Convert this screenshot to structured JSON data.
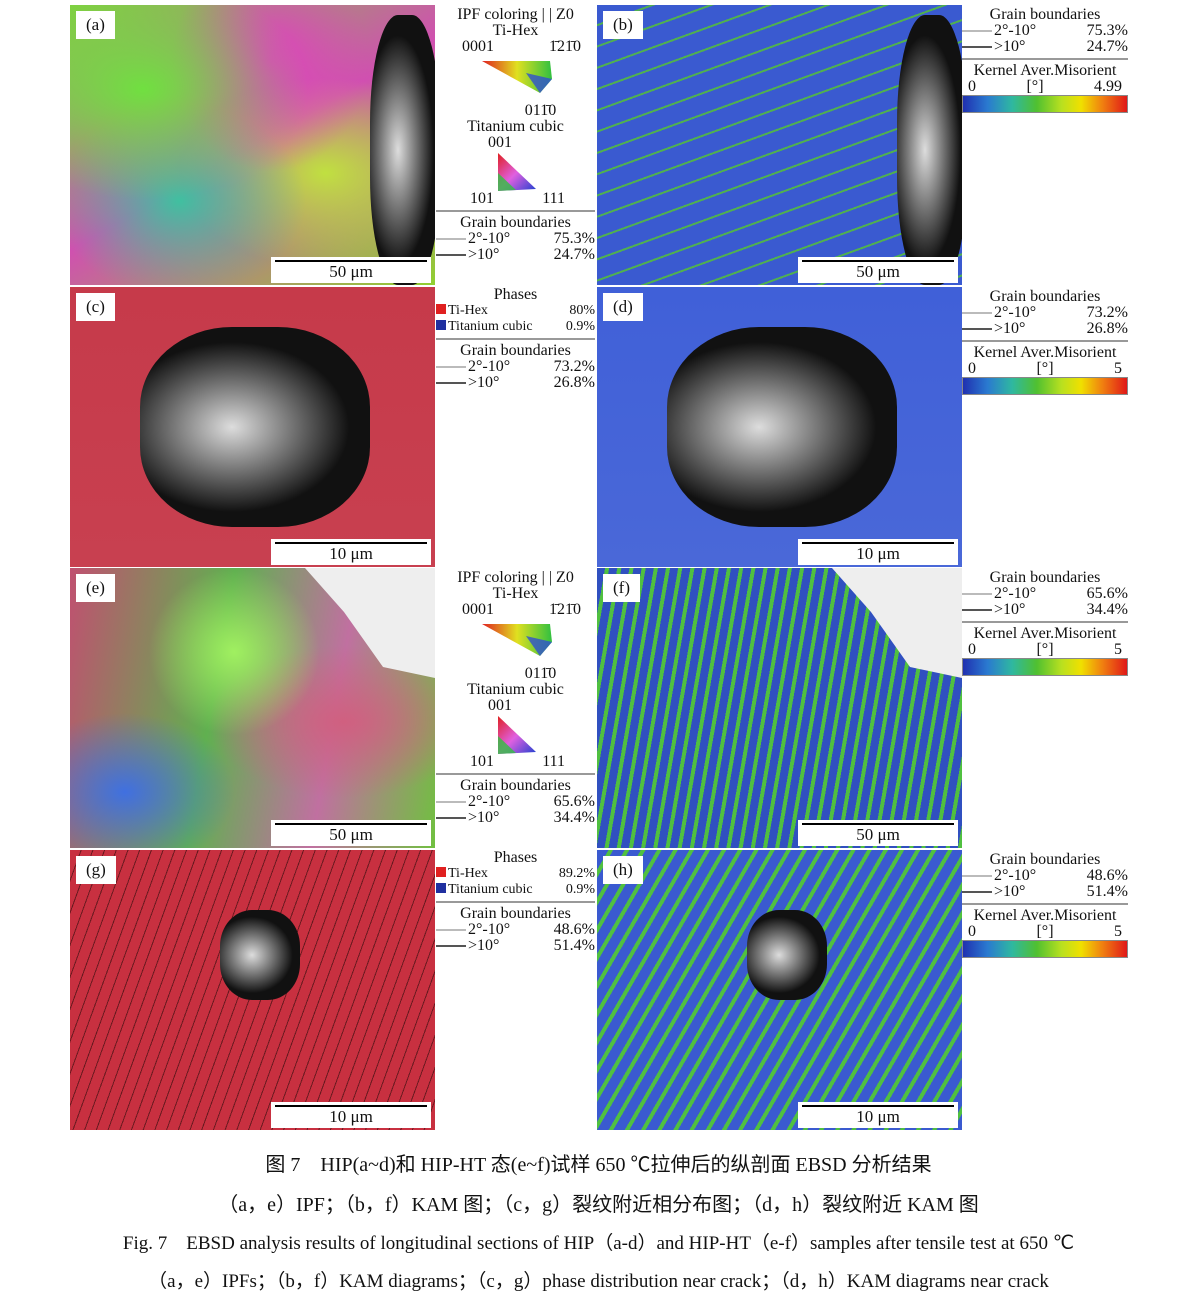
{
  "panels": [
    {
      "label": "(a)",
      "type": "ipf",
      "scale": "50 μm"
    },
    {
      "label": "(b)",
      "type": "kam",
      "scale": "50 μm"
    },
    {
      "label": "(c)",
      "type": "phase",
      "scale": "10 μm"
    },
    {
      "label": "(d)",
      "type": "kam2",
      "scale": "10 μm"
    },
    {
      "label": "(e)",
      "type": "ipf2",
      "scale": "50 μm"
    },
    {
      "label": "(f)",
      "type": "kam3",
      "scale": "50 μm"
    },
    {
      "label": "(g)",
      "type": "phase2",
      "scale": "10 μm"
    },
    {
      "label": "(h)",
      "type": "kam4",
      "scale": "10 μm"
    }
  ],
  "legends": [
    {
      "kind": "ipf",
      "title": "IPF coloring | | Z0",
      "hex_title": "Ti-Hex",
      "hex_labels": [
        "0001",
        "1̄21̄0",
        "011̄0"
      ],
      "cubic_title": "Titanium cubic",
      "cubic_labels": [
        "001",
        "101",
        "111"
      ],
      "gb": {
        "title": "Grain boundaries",
        "low": "2°-10°",
        "low_pct": "75.3%",
        "high": ">10°",
        "high_pct": "24.7%"
      }
    },
    {
      "kind": "kam",
      "gb": {
        "title": "Grain boundaries",
        "low": "2°-10°",
        "low_pct": "75.3%",
        "high": ">10°",
        "high_pct": "24.7%"
      },
      "kam": {
        "title": "Kernel Aver.Misorient",
        "min": "0",
        "unit": "[°]",
        "max": "4.99"
      }
    },
    {
      "kind": "phase",
      "title": "Phases",
      "items": [
        {
          "name": "Ti-Hex",
          "pct": "80%",
          "color": "#e02020"
        },
        {
          "name": "Titanium cubic",
          "pct": "0.9%",
          "color": "#2030a0"
        }
      ],
      "gb": {
        "title": "Grain boundaries",
        "low": "2°-10°",
        "low_pct": "73.2%",
        "high": ">10°",
        "high_pct": "26.8%"
      }
    },
    {
      "kind": "kam",
      "gb": {
        "title": "Grain boundaries",
        "low": "2°-10°",
        "low_pct": "73.2%",
        "high": ">10°",
        "high_pct": "26.8%"
      },
      "kam": {
        "title": "Kernel Aver.Misorient",
        "min": "0",
        "unit": "[°]",
        "max": "5"
      }
    },
    {
      "kind": "ipf",
      "title": "IPF coloring | | Z0",
      "hex_title": "Ti-Hex",
      "hex_labels": [
        "0001",
        "1̄21̄0",
        "011̄0"
      ],
      "cubic_title": "Titanium cubic",
      "cubic_labels": [
        "001",
        "101",
        "111"
      ],
      "gb": {
        "title": "Grain boundaries",
        "low": "2°-10°",
        "low_pct": "65.6%",
        "high": ">10°",
        "high_pct": "34.4%"
      }
    },
    {
      "kind": "kam",
      "gb": {
        "title": "Grain boundaries",
        "low": "2°-10°",
        "low_pct": "65.6%",
        "high": ">10°",
        "high_pct": "34.4%"
      },
      "kam": {
        "title": "Kernel Aver.Misorient",
        "min": "0",
        "unit": "[°]",
        "max": "5"
      }
    },
    {
      "kind": "phase",
      "title": "Phases",
      "items": [
        {
          "name": "Ti-Hex",
          "pct": "89.2%",
          "color": "#e02020"
        },
        {
          "name": "Titanium cubic",
          "pct": "0.9%",
          "color": "#2030a0"
        }
      ],
      "gb": {
        "title": "Grain boundaries",
        "low": "2°-10°",
        "low_pct": "48.6%",
        "high": ">10°",
        "high_pct": "51.4%"
      }
    },
    {
      "kind": "kam",
      "gb": {
        "title": "Grain boundaries",
        "low": "2°-10°",
        "low_pct": "48.6%",
        "high": ">10°",
        "high_pct": "51.4%"
      },
      "kam": {
        "title": "Kernel Aver.Misorient",
        "min": "0",
        "unit": "[°]",
        "max": "5"
      }
    }
  ],
  "caption": {
    "cn_title": "图 7　HIP(a~d)和 HIP-HT 态(e~f)试样 650 ℃拉伸后的纵剖面 EBSD 分析结果",
    "cn_sub": "（a，e）IPF；（b，f）KAM 图；（c，g）裂纹附近相分布图；（d，h）裂纹附近 KAM 图",
    "en_title": "Fig. 7　EBSD analysis results of longitudinal sections of HIP（a-d）and HIP-HT（e-f）samples after tensile test at 650 ℃",
    "en_sub": "（a，e）IPFs；（b，f）KAM diagrams；（c，g）phase distribution near crack；（d，h）KAM diagrams near crack"
  }
}
